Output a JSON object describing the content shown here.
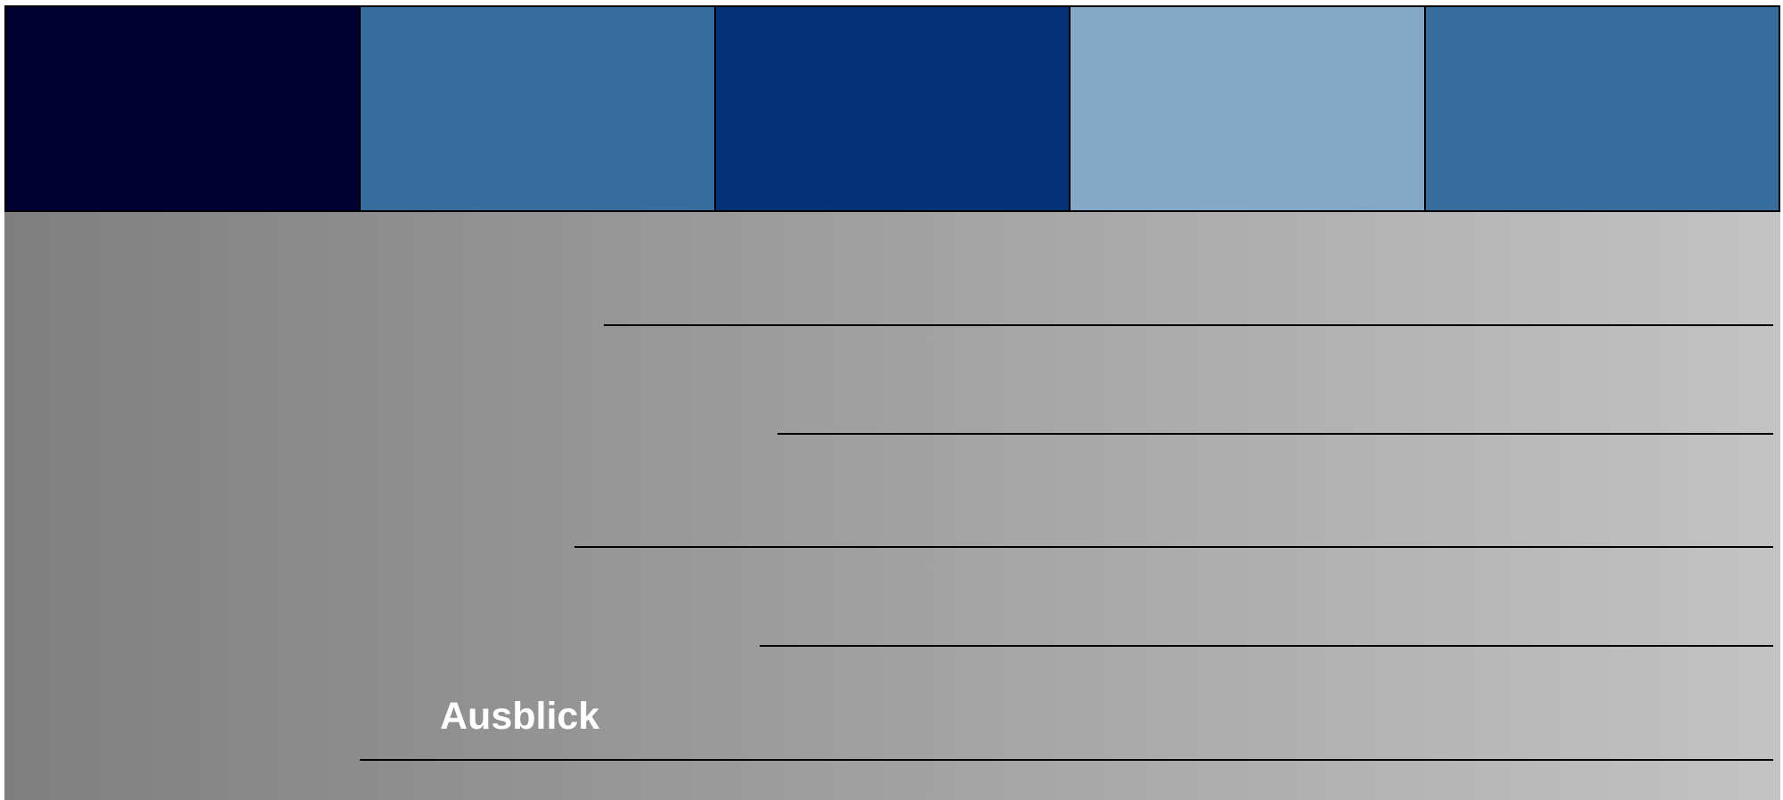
{
  "header": {
    "blocks": [
      {
        "name": "header-block-1",
        "color": "#000033"
      },
      {
        "name": "header-block-2",
        "color": "#376d9d"
      },
      {
        "name": "header-block-3",
        "color": "#033278"
      },
      {
        "name": "header-block-4",
        "color": "#84a8c6"
      },
      {
        "name": "header-block-5",
        "color": "#376d9d"
      }
    ]
  },
  "background": {
    "gradient_start": "#7f7f7f",
    "gradient_end": "#c3c3c3"
  },
  "title": {
    "text": "Ausblick",
    "color": "#ffffff"
  }
}
